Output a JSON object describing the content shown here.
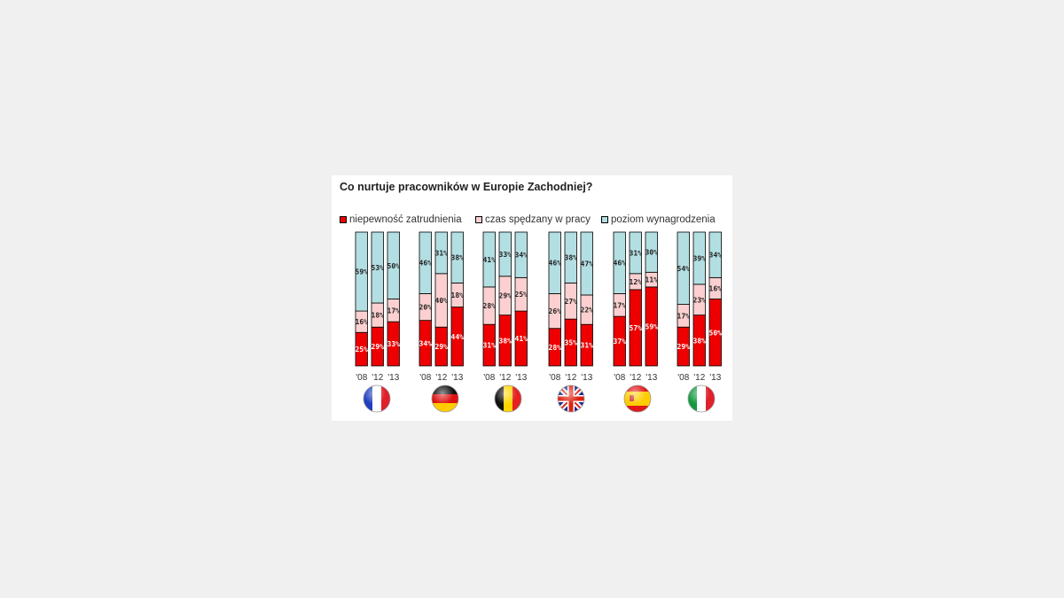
{
  "chart_data": {
    "type": "bar",
    "stacked": true,
    "title": "Co nurtuje pracowników w Europie Zachodniej?",
    "legend_position": "top",
    "grid": false,
    "ylim": [
      0,
      100
    ],
    "series_meta": [
      {
        "name": "niepewność zatrudnienia",
        "color": "#ee0000"
      },
      {
        "name": "czas spędzany w pracy",
        "color": "#fcd0d0"
      },
      {
        "name": "poziom wynagrodzenia",
        "color": "#b3dfe3"
      }
    ],
    "groups": [
      {
        "country": "France",
        "flag_icon": "france-flag-icon",
        "years": [
          "'08",
          "'12",
          "'13"
        ],
        "values": [
          [
            25,
            16,
            59
          ],
          [
            29,
            18,
            53
          ],
          [
            33,
            17,
            50
          ]
        ]
      },
      {
        "country": "Germany",
        "flag_icon": "germany-flag-icon",
        "years": [
          "'08",
          "'12",
          "'13"
        ],
        "values": [
          [
            34,
            20,
            46
          ],
          [
            29,
            40,
            31
          ],
          [
            44,
            18,
            38
          ]
        ]
      },
      {
        "country": "Belgium",
        "flag_icon": "belgium-flag-icon",
        "years": [
          "'08",
          "'12",
          "'13"
        ],
        "values": [
          [
            31,
            28,
            41
          ],
          [
            38,
            29,
            33
          ],
          [
            41,
            25,
            34
          ]
        ]
      },
      {
        "country": "United Kingdom",
        "flag_icon": "uk-flag-icon",
        "years": [
          "'08",
          "'12",
          "'13"
        ],
        "values": [
          [
            28,
            26,
            46
          ],
          [
            35,
            27,
            38
          ],
          [
            31,
            22,
            47
          ]
        ]
      },
      {
        "country": "Spain",
        "flag_icon": "spain-flag-icon",
        "years": [
          "'08",
          "'12",
          "'13"
        ],
        "values": [
          [
            37,
            17,
            46
          ],
          [
            57,
            12,
            31
          ],
          [
            59,
            11,
            30
          ]
        ]
      },
      {
        "country": "Italy",
        "flag_icon": "italy-flag-icon",
        "years": [
          "'08",
          "'12",
          "'13"
        ],
        "values": [
          [
            29,
            17,
            54
          ],
          [
            38,
            23,
            39
          ],
          [
            50,
            16,
            34
          ]
        ]
      }
    ]
  }
}
